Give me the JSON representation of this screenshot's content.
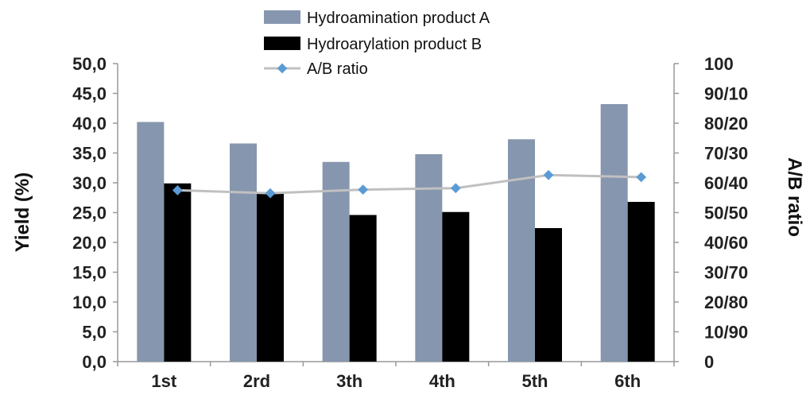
{
  "chart_data": {
    "type": "bar",
    "categories": [
      "1st",
      "2rd",
      "3th",
      "4th",
      "5th",
      "6th"
    ],
    "series": [
      {
        "name": "Hydroamination product A",
        "type": "bar",
        "axis": "left",
        "color": "#8696ae",
        "values": [
          40.2,
          36.6,
          33.5,
          34.8,
          37.3,
          43.2
        ]
      },
      {
        "name": "Hydroarylation product B",
        "type": "bar",
        "axis": "left",
        "color": "#000000",
        "values": [
          29.9,
          28.3,
          24.6,
          25.1,
          22.4,
          26.8
        ]
      },
      {
        "name": "A/B ratio",
        "type": "line",
        "axis": "right",
        "color": "#c0c0c0",
        "marker_color": "#5b9bd5",
        "values": [
          57.5,
          56.5,
          57.7,
          58.2,
          62.6,
          61.9
        ]
      }
    ],
    "ylabel": "Yield (%)",
    "ylim": [
      0,
      50
    ],
    "yticks": [
      "0,0",
      "5,0",
      "10,0",
      "15,0",
      "20,0",
      "25,0",
      "30,0",
      "35,0",
      "40,0",
      "45,0",
      "50,0"
    ],
    "y2label": "A/B ratio",
    "y2lim": [
      0,
      100
    ],
    "y2ticks": [
      "0",
      "10/90",
      "20/80",
      "30/70",
      "40/60",
      "50/50",
      "60/40",
      "70/30",
      "80/20",
      "90/10",
      "100"
    ],
    "grid": false,
    "legend_position": "top-center"
  }
}
